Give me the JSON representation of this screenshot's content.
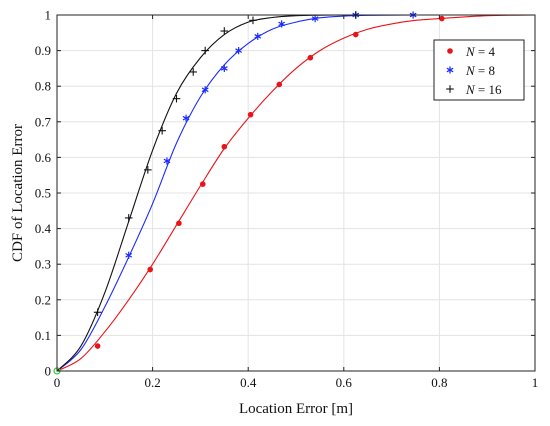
{
  "chart_data": {
    "type": "line",
    "xlabel": "Location Error [m]",
    "ylabel": "CDF of Location Error",
    "xlim": [
      0,
      1
    ],
    "ylim": [
      0,
      1
    ],
    "xticks": [
      "0",
      "0.2",
      "0.4",
      "0.6",
      "0.8",
      "1"
    ],
    "yticks": [
      "0",
      "0.1",
      "0.2",
      "0.3",
      "0.4",
      "0.5",
      "0.6",
      "0.7",
      "0.8",
      "0.9",
      "1"
    ],
    "grid": true,
    "legend_position": "top-right",
    "series": [
      {
        "name": "N = 4",
        "legend_var": "N",
        "legend_val": "= 4",
        "color": "#e8141a",
        "marker": "dot",
        "x": [
          0,
          0.05,
          0.1,
          0.15,
          0.2,
          0.25,
          0.3,
          0.35,
          0.4,
          0.45,
          0.5,
          0.55,
          0.6,
          0.65,
          0.7,
          0.75,
          0.8,
          0.9,
          1.0
        ],
        "y": [
          0,
          0.035,
          0.11,
          0.2,
          0.3,
          0.41,
          0.52,
          0.625,
          0.71,
          0.785,
          0.85,
          0.9,
          0.935,
          0.96,
          0.975,
          0.985,
          0.99,
          0.998,
          1.0
        ],
        "markers_x": [
          0.085,
          0.195,
          0.255,
          0.305,
          0.35,
          0.405,
          0.465,
          0.53,
          0.625,
          0.805
        ],
        "markers_y": [
          0.07,
          0.285,
          0.415,
          0.525,
          0.63,
          0.72,
          0.805,
          0.88,
          0.945,
          0.99
        ]
      },
      {
        "name": "N = 8",
        "legend_var": "N",
        "legend_val": "= 8",
        "color": "#1a2bff",
        "marker": "asterisk",
        "x": [
          0,
          0.05,
          0.1,
          0.15,
          0.2,
          0.25,
          0.3,
          0.35,
          0.4,
          0.45,
          0.5,
          0.55,
          0.6,
          0.65,
          0.75,
          0.85,
          1.0
        ],
        "y": [
          0,
          0.06,
          0.18,
          0.32,
          0.47,
          0.64,
          0.77,
          0.86,
          0.92,
          0.96,
          0.98,
          0.992,
          0.997,
          0.999,
          1.0,
          1.0,
          1.0
        ],
        "markers_x": [
          0.15,
          0.23,
          0.27,
          0.31,
          0.35,
          0.38,
          0.42,
          0.47,
          0.54,
          0.625,
          0.745
        ],
        "markers_y": [
          0.325,
          0.59,
          0.71,
          0.79,
          0.85,
          0.9,
          0.94,
          0.975,
          0.99,
          1.0,
          1.0
        ]
      },
      {
        "name": "N = 16",
        "legend_var": "N",
        "legend_val": "= 16",
        "color": "#111111",
        "marker": "plus",
        "x": [
          0,
          0.05,
          0.1,
          0.15,
          0.2,
          0.25,
          0.3,
          0.35,
          0.4,
          0.45,
          0.5,
          0.55,
          0.6,
          0.7,
          1.0
        ],
        "y": [
          0,
          0.07,
          0.22,
          0.42,
          0.62,
          0.78,
          0.88,
          0.945,
          0.98,
          0.993,
          0.998,
          0.9995,
          1.0,
          1.0,
          1.0
        ],
        "markers_x": [
          0.085,
          0.15,
          0.19,
          0.22,
          0.25,
          0.285,
          0.31,
          0.35,
          0.41,
          0.625
        ],
        "markers_y": [
          0.165,
          0.43,
          0.565,
          0.675,
          0.765,
          0.84,
          0.9,
          0.955,
          0.985,
          1.0
        ]
      }
    ]
  }
}
